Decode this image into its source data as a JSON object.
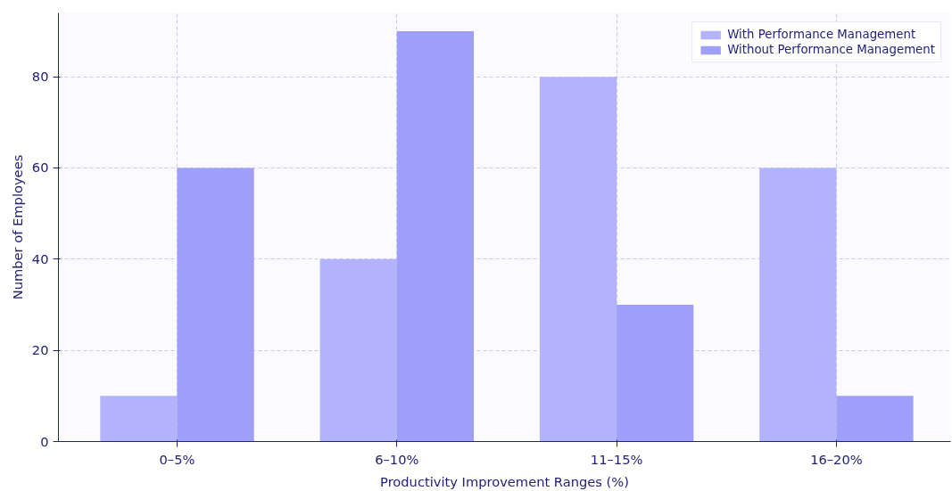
{
  "chart_data": {
    "type": "bar",
    "categories": [
      "0–5%",
      "6–10%",
      "11–15%",
      "16–20%"
    ],
    "series": [
      {
        "name": "With Performance Management",
        "color": "#b3b3fb",
        "values": [
          10,
          40,
          80,
          60
        ]
      },
      {
        "name": "Without Performance Management",
        "color": "#9f9ffa",
        "values": [
          60,
          90,
          30,
          10
        ]
      }
    ],
    "xlabel": "Productivity Improvement Ranges (%)",
    "ylabel": "Number of Employees",
    "ylim": [
      0,
      94
    ],
    "yticks": [
      0,
      20,
      40,
      60,
      80
    ],
    "grid": true,
    "legend": "top right"
  }
}
